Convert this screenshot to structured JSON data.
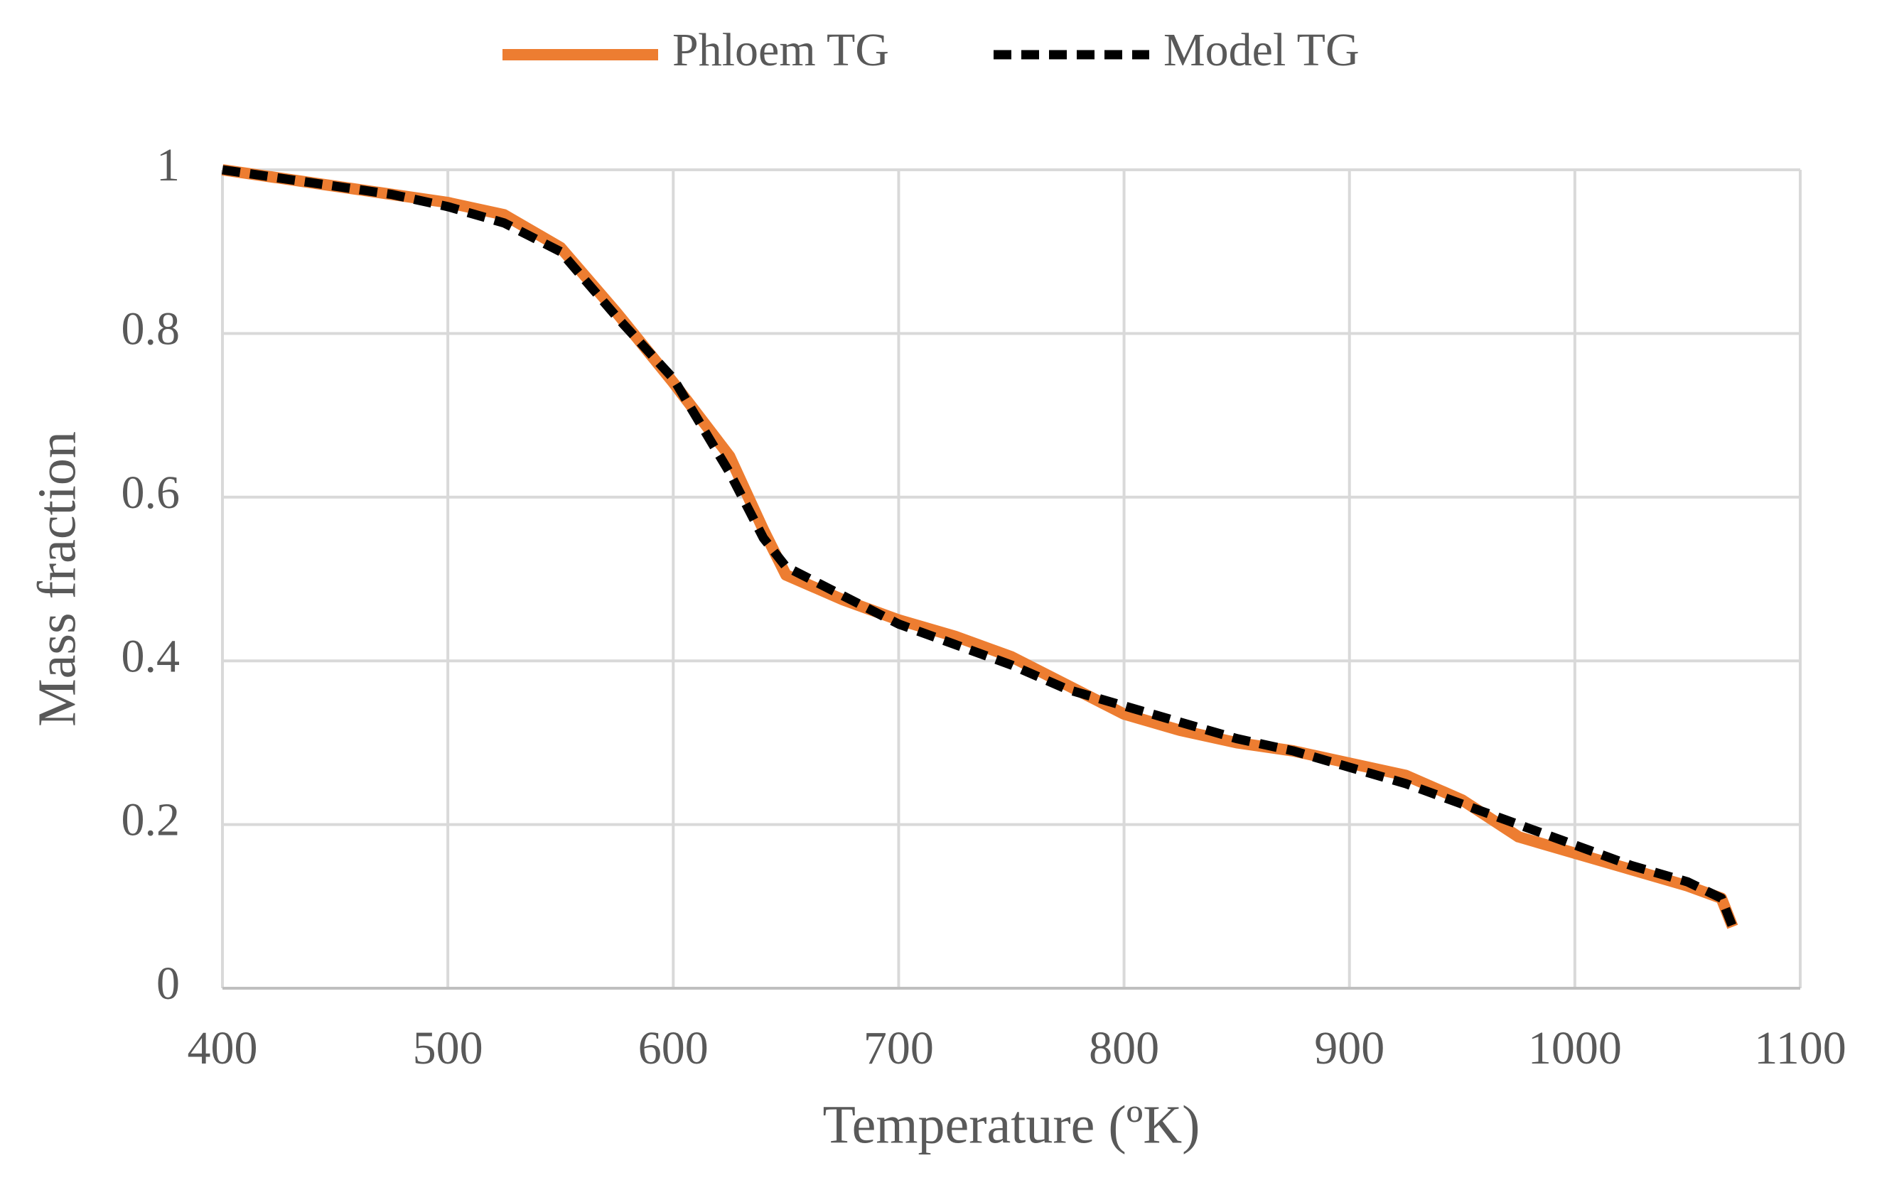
{
  "chart_data": {
    "type": "line",
    "x_label": "Temperature (ºK)",
    "y_label": "Mass fraction",
    "x": [
      400,
      425,
      450,
      475,
      500,
      525,
      550,
      575,
      600,
      625,
      640,
      650,
      675,
      700,
      725,
      750,
      775,
      800,
      825,
      850,
      875,
      900,
      925,
      950,
      975,
      1000,
      1025,
      1050,
      1065,
      1070
    ],
    "series": [
      {
        "name": "Phloem TG",
        "color": "#ed7d31",
        "dashed": false,
        "values": [
          1.0,
          0.99,
          0.98,
          0.97,
          0.96,
          0.945,
          0.905,
          0.825,
          0.74,
          0.65,
          0.56,
          0.505,
          0.475,
          0.45,
          0.43,
          0.405,
          0.37,
          0.335,
          0.315,
          0.3,
          0.29,
          0.275,
          0.26,
          0.23,
          0.185,
          0.165,
          0.145,
          0.125,
          0.11,
          0.075
        ]
      },
      {
        "name": "Model TG",
        "color": "#000000",
        "dashed": true,
        "values": [
          1.0,
          0.99,
          0.98,
          0.97,
          0.955,
          0.935,
          0.9,
          0.82,
          0.745,
          0.63,
          0.55,
          0.515,
          0.48,
          0.445,
          0.42,
          0.395,
          0.365,
          0.345,
          0.325,
          0.305,
          0.29,
          0.27,
          0.25,
          0.225,
          0.2,
          0.175,
          0.15,
          0.13,
          0.11,
          0.075
        ]
      }
    ],
    "xlim": [
      400,
      1100
    ],
    "xticks": [
      400,
      500,
      600,
      700,
      800,
      900,
      1000,
      1100
    ],
    "ylim": [
      0,
      1
    ],
    "yticks": [
      0,
      0.2,
      0.4,
      0.6,
      0.8,
      1
    ],
    "grid": true,
    "legend": "top"
  }
}
